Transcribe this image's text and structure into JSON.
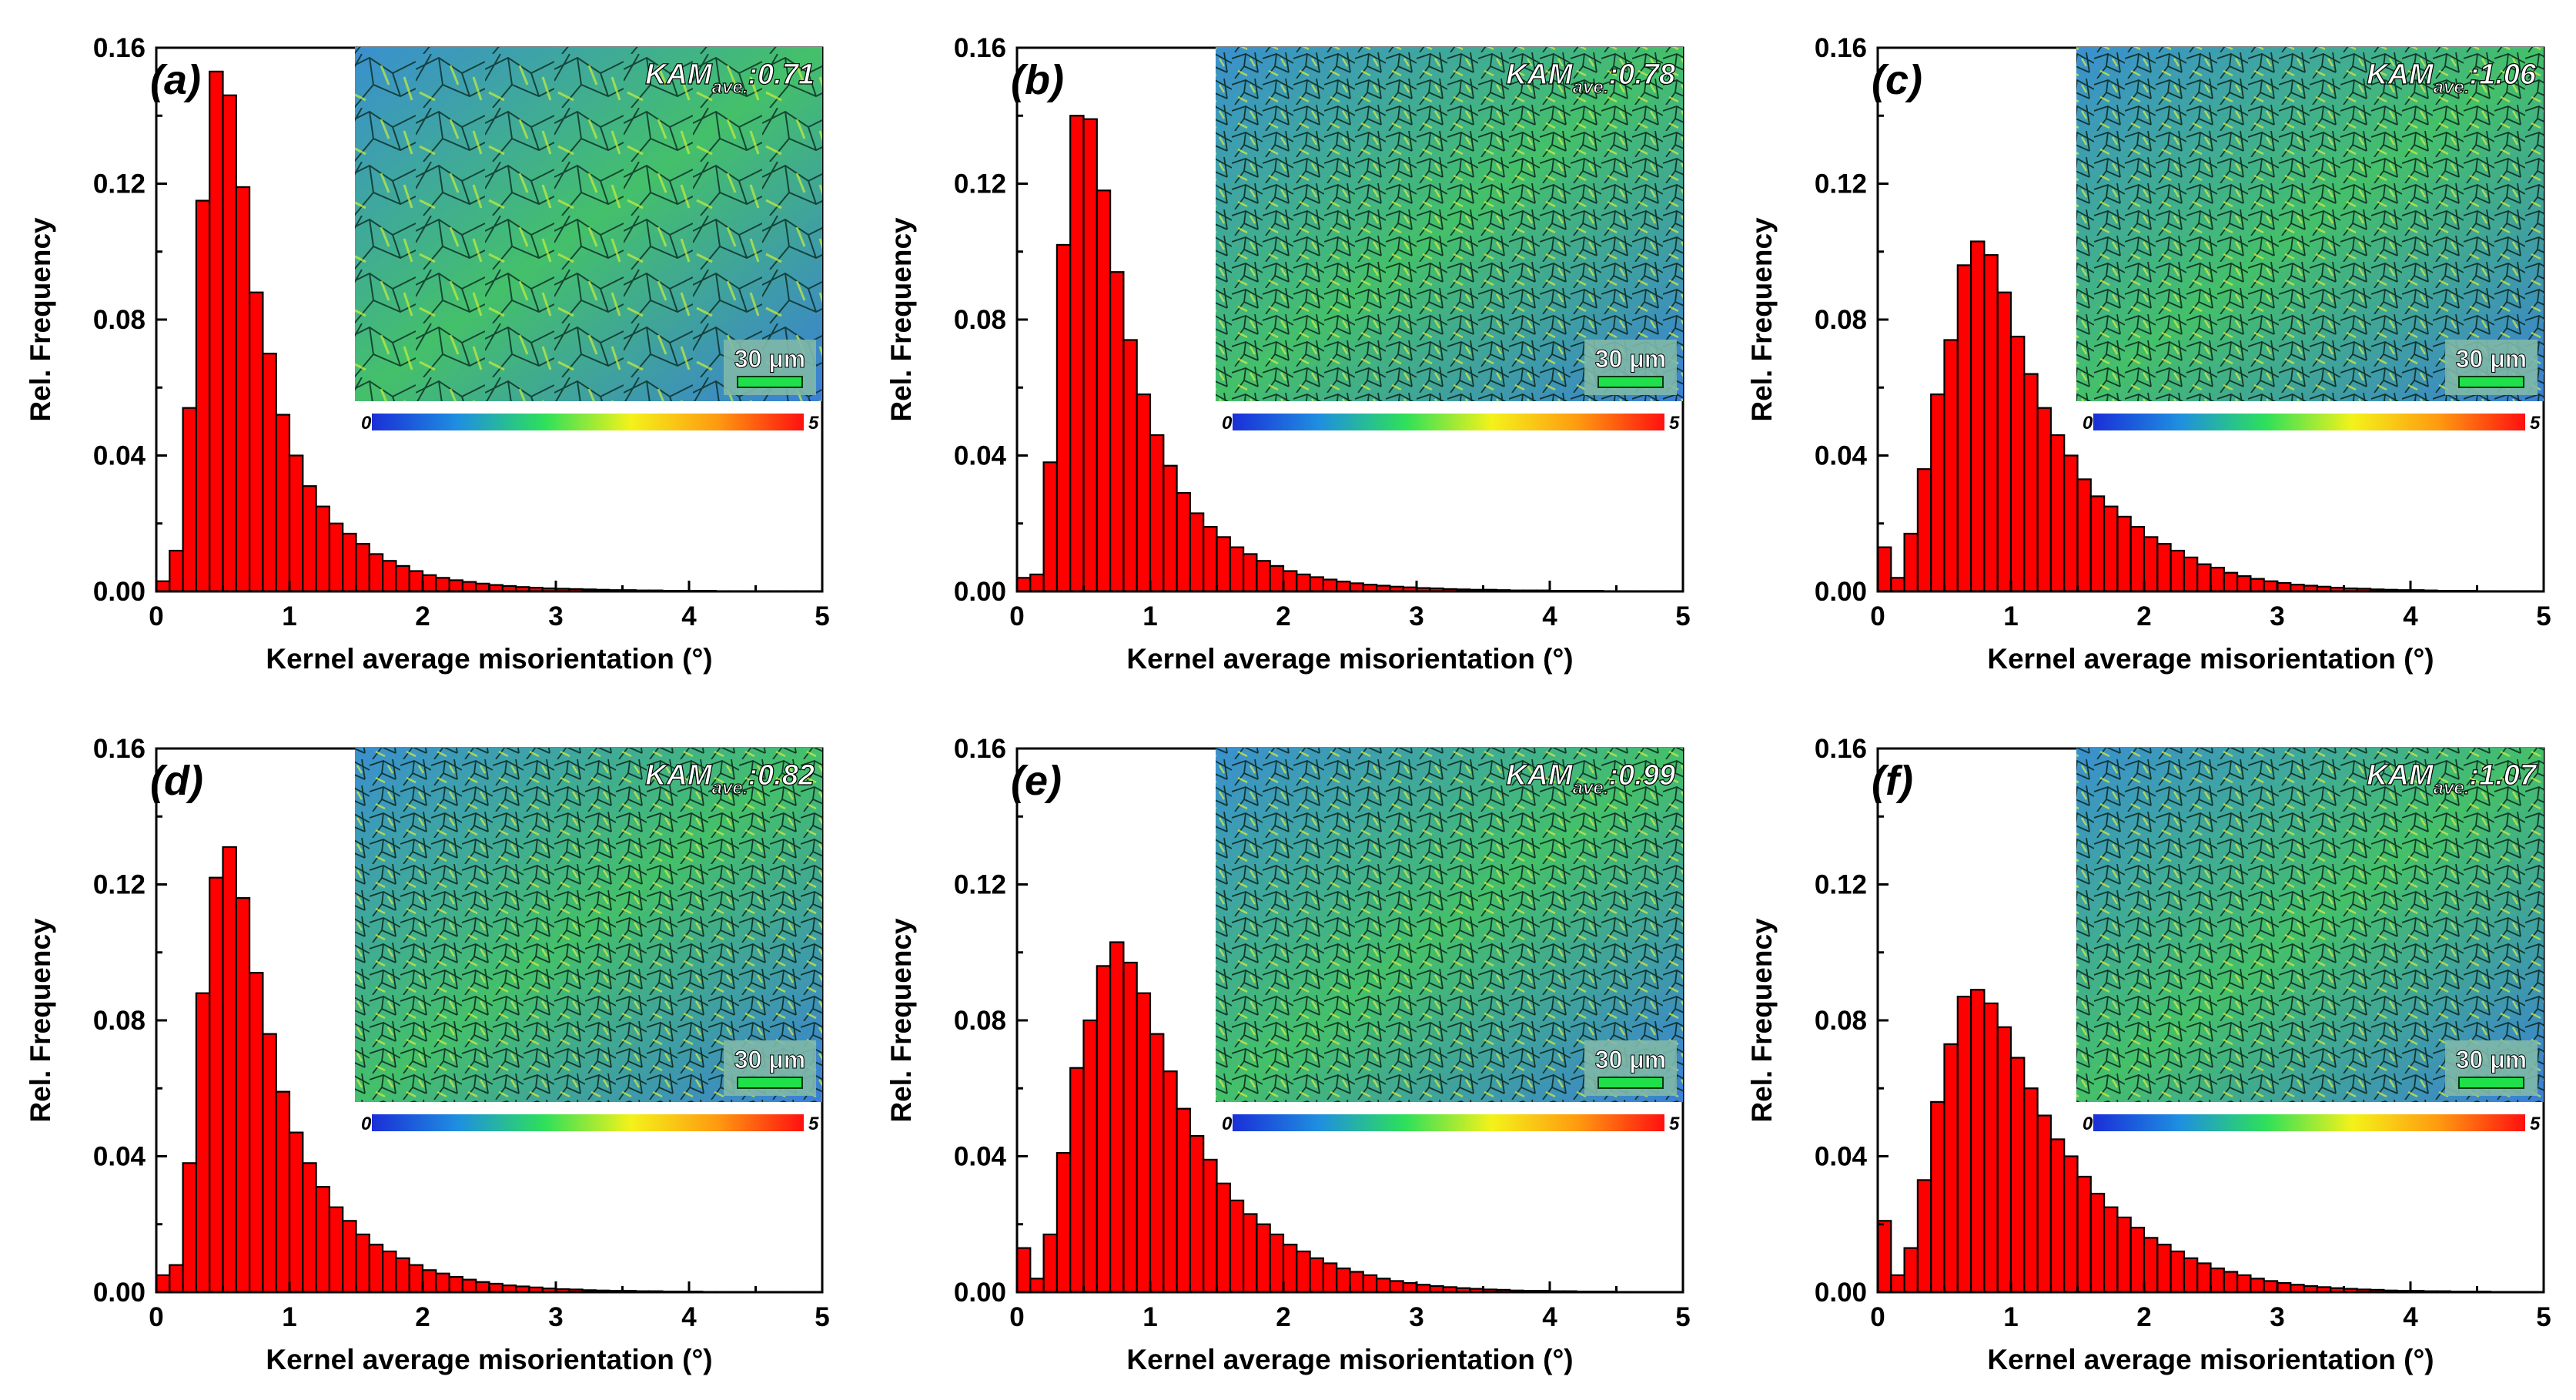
{
  "figure": {
    "colorbar_min": "0",
    "colorbar_max": "5",
    "colors": {
      "bar_fill": "#ff0000",
      "bar_stroke": "#000000",
      "axis": "#000000",
      "map_blue": "#2f5fd0",
      "map_green": "#3fcf4a",
      "scalebar_bg": "#7fb8a8",
      "scalebar_line": "#1fe04a"
    }
  },
  "chart_data": [
    {
      "type": "bar",
      "panel": "(a)",
      "kam_value": ":0.71",
      "kam_prefix": "KAM",
      "kam_sub": "ave.",
      "scale_label": "30 μm",
      "xlabel": "Kernel average misorientation (°)",
      "ylabel": "Rel. Frequency",
      "xlim": [
        0,
        5
      ],
      "ylim": [
        0,
        0.16
      ],
      "xticks": [
        "0",
        "1",
        "2",
        "3",
        "4",
        "5"
      ],
      "yticks": [
        "0.00",
        "0.04",
        "0.08",
        "0.12",
        "0.16"
      ],
      "bin_width": 0.1,
      "x": [
        0.05,
        0.15,
        0.25,
        0.35,
        0.45,
        0.55,
        0.65,
        0.75,
        0.85,
        0.95,
        1.05,
        1.15,
        1.25,
        1.35,
        1.45,
        1.55,
        1.65,
        1.75,
        1.85,
        1.95,
        2.05,
        2.15,
        2.25,
        2.35,
        2.45,
        2.55,
        2.65,
        2.75,
        2.85,
        2.95,
        3.05,
        3.15,
        3.25,
        3.35,
        3.45,
        3.55,
        3.65,
        3.75,
        3.85,
        3.95,
        4.05,
        4.15,
        4.25,
        4.35,
        4.45,
        4.55,
        4.65,
        4.75,
        4.85,
        4.95
      ],
      "values": [
        0.003,
        0.012,
        0.054,
        0.115,
        0.153,
        0.146,
        0.119,
        0.088,
        0.07,
        0.052,
        0.04,
        0.031,
        0.025,
        0.02,
        0.017,
        0.014,
        0.011,
        0.009,
        0.0075,
        0.006,
        0.0048,
        0.004,
        0.0033,
        0.0028,
        0.0023,
        0.0019,
        0.0016,
        0.0013,
        0.0011,
        0.0009,
        0.0008,
        0.0007,
        0.0006,
        0.0005,
        0.0004,
        0.0004,
        0.0003,
        0.0003,
        0.0002,
        0.0002,
        0.0002,
        0.0002,
        0.0001,
        0.0001,
        0.0001,
        0.0001,
        0.0001,
        0.0001,
        0.0001,
        0.0001
      ]
    },
    {
      "type": "bar",
      "panel": "(b)",
      "kam_value": ":0.78",
      "kam_prefix": "KAM",
      "kam_sub": "ave.",
      "scale_label": "30 μm",
      "xlabel": "Kernel average misorientation (°)",
      "ylabel": "Rel. Frequency",
      "xlim": [
        0,
        5
      ],
      "ylim": [
        0,
        0.16
      ],
      "xticks": [
        "0",
        "1",
        "2",
        "3",
        "4",
        "5"
      ],
      "yticks": [
        "0.00",
        "0.04",
        "0.08",
        "0.12",
        "0.16"
      ],
      "bin_width": 0.1,
      "x": [
        0.05,
        0.15,
        0.25,
        0.35,
        0.45,
        0.55,
        0.65,
        0.75,
        0.85,
        0.95,
        1.05,
        1.15,
        1.25,
        1.35,
        1.45,
        1.55,
        1.65,
        1.75,
        1.85,
        1.95,
        2.05,
        2.15,
        2.25,
        2.35,
        2.45,
        2.55,
        2.65,
        2.75,
        2.85,
        2.95,
        3.05,
        3.15,
        3.25,
        3.35,
        3.45,
        3.55,
        3.65,
        3.75,
        3.85,
        3.95,
        4.05,
        4.15,
        4.25,
        4.35,
        4.45,
        4.55,
        4.65,
        4.75,
        4.85,
        4.95
      ],
      "values": [
        0.004,
        0.005,
        0.038,
        0.102,
        0.14,
        0.139,
        0.118,
        0.094,
        0.074,
        0.058,
        0.046,
        0.037,
        0.029,
        0.023,
        0.019,
        0.016,
        0.013,
        0.011,
        0.009,
        0.0075,
        0.006,
        0.005,
        0.0042,
        0.0035,
        0.0029,
        0.0024,
        0.002,
        0.0017,
        0.0014,
        0.0012,
        0.001,
        0.0009,
        0.0007,
        0.0006,
        0.0005,
        0.0005,
        0.0004,
        0.0003,
        0.0003,
        0.0003,
        0.0002,
        0.0002,
        0.0002,
        0.0002,
        0.0001,
        0.0001,
        0.0001,
        0.0001,
        0.0001,
        0.0001
      ]
    },
    {
      "type": "bar",
      "panel": "(c)",
      "kam_value": ":1.06",
      "kam_prefix": "KAM",
      "kam_sub": "ave.",
      "scale_label": "30 μm",
      "xlabel": "Kernel average misorientation (°)",
      "ylabel": "Rel. Frequency",
      "xlim": [
        0,
        5
      ],
      "ylim": [
        0,
        0.16
      ],
      "xticks": [
        "0",
        "1",
        "2",
        "3",
        "4",
        "5"
      ],
      "yticks": [
        "0.00",
        "0.04",
        "0.08",
        "0.12",
        "0.16"
      ],
      "bin_width": 0.1,
      "x": [
        0.05,
        0.15,
        0.25,
        0.35,
        0.45,
        0.55,
        0.65,
        0.75,
        0.85,
        0.95,
        1.05,
        1.15,
        1.25,
        1.35,
        1.45,
        1.55,
        1.65,
        1.75,
        1.85,
        1.95,
        2.05,
        2.15,
        2.25,
        2.35,
        2.45,
        2.55,
        2.65,
        2.75,
        2.85,
        2.95,
        3.05,
        3.15,
        3.25,
        3.35,
        3.45,
        3.55,
        3.65,
        3.75,
        3.85,
        3.95,
        4.05,
        4.15,
        4.25,
        4.35,
        4.45,
        4.55,
        4.65,
        4.75,
        4.85,
        4.95
      ],
      "values": [
        0.013,
        0.004,
        0.017,
        0.036,
        0.058,
        0.074,
        0.096,
        0.103,
        0.099,
        0.088,
        0.075,
        0.064,
        0.054,
        0.046,
        0.04,
        0.033,
        0.028,
        0.025,
        0.022,
        0.019,
        0.016,
        0.014,
        0.012,
        0.01,
        0.008,
        0.007,
        0.0055,
        0.0045,
        0.0037,
        0.003,
        0.0025,
        0.002,
        0.0017,
        0.0014,
        0.0011,
        0.0009,
        0.0008,
        0.0006,
        0.0005,
        0.0004,
        0.0004,
        0.0003,
        0.0002,
        0.0002,
        0.0002,
        0.0001,
        0.0001,
        0.0001,
        0.0001,
        0.0001
      ]
    },
    {
      "type": "bar",
      "panel": "(d)",
      "kam_value": ":0.82",
      "kam_prefix": "KAM",
      "kam_sub": "ave.",
      "scale_label": "30 μm",
      "xlabel": "Kernel average misorientation (°)",
      "ylabel": "Rel. Frequency",
      "xlim": [
        0,
        5
      ],
      "ylim": [
        0,
        0.16
      ],
      "xticks": [
        "0",
        "1",
        "2",
        "3",
        "4",
        "5"
      ],
      "yticks": [
        "0.00",
        "0.04",
        "0.08",
        "0.12",
        "0.16"
      ],
      "bin_width": 0.1,
      "x": [
        0.05,
        0.15,
        0.25,
        0.35,
        0.45,
        0.55,
        0.65,
        0.75,
        0.85,
        0.95,
        1.05,
        1.15,
        1.25,
        1.35,
        1.45,
        1.55,
        1.65,
        1.75,
        1.85,
        1.95,
        2.05,
        2.15,
        2.25,
        2.35,
        2.45,
        2.55,
        2.65,
        2.75,
        2.85,
        2.95,
        3.05,
        3.15,
        3.25,
        3.35,
        3.45,
        3.55,
        3.65,
        3.75,
        3.85,
        3.95,
        4.05,
        4.15,
        4.25,
        4.35,
        4.45,
        4.55,
        4.65,
        4.75,
        4.85,
        4.95
      ],
      "values": [
        0.005,
        0.008,
        0.038,
        0.088,
        0.122,
        0.131,
        0.116,
        0.094,
        0.076,
        0.059,
        0.047,
        0.038,
        0.031,
        0.025,
        0.021,
        0.017,
        0.014,
        0.012,
        0.01,
        0.008,
        0.0065,
        0.0055,
        0.0045,
        0.0037,
        0.003,
        0.0025,
        0.002,
        0.0017,
        0.0014,
        0.0011,
        0.0009,
        0.0008,
        0.0006,
        0.0005,
        0.0004,
        0.0004,
        0.0003,
        0.0003,
        0.0002,
        0.0002,
        0.0002,
        0.0001,
        0.0001,
        0.0001,
        0.0001,
        0.0001,
        0.0001,
        0.0001,
        0.0001,
        0.0001
      ]
    },
    {
      "type": "bar",
      "panel": "(e)",
      "kam_value": ":0.99",
      "kam_prefix": "KAM",
      "kam_sub": "ave.",
      "scale_label": "30 μm",
      "xlabel": "Kernel average misorientation (°)",
      "ylabel": "Rel. Frequency",
      "xlim": [
        0,
        5
      ],
      "ylim": [
        0,
        0.16
      ],
      "xticks": [
        "0",
        "1",
        "2",
        "3",
        "4",
        "5"
      ],
      "yticks": [
        "0.00",
        "0.04",
        "0.08",
        "0.12",
        "0.16"
      ],
      "bin_width": 0.1,
      "x": [
        0.05,
        0.15,
        0.25,
        0.35,
        0.45,
        0.55,
        0.65,
        0.75,
        0.85,
        0.95,
        1.05,
        1.15,
        1.25,
        1.35,
        1.45,
        1.55,
        1.65,
        1.75,
        1.85,
        1.95,
        2.05,
        2.15,
        2.25,
        2.35,
        2.45,
        2.55,
        2.65,
        2.75,
        2.85,
        2.95,
        3.05,
        3.15,
        3.25,
        3.35,
        3.45,
        3.55,
        3.65,
        3.75,
        3.85,
        3.95,
        4.05,
        4.15,
        4.25,
        4.35,
        4.45,
        4.55,
        4.65,
        4.75,
        4.85,
        4.95
      ],
      "values": [
        0.013,
        0.004,
        0.017,
        0.041,
        0.066,
        0.08,
        0.096,
        0.103,
        0.097,
        0.088,
        0.076,
        0.065,
        0.054,
        0.046,
        0.039,
        0.032,
        0.027,
        0.023,
        0.02,
        0.017,
        0.014,
        0.012,
        0.01,
        0.0085,
        0.007,
        0.006,
        0.005,
        0.004,
        0.0033,
        0.0027,
        0.0022,
        0.0018,
        0.0015,
        0.0012,
        0.001,
        0.0008,
        0.0007,
        0.0005,
        0.0004,
        0.0004,
        0.0003,
        0.0003,
        0.0002,
        0.0002,
        0.0002,
        0.0001,
        0.0001,
        0.0001,
        0.0001,
        0.0001
      ]
    },
    {
      "type": "bar",
      "panel": "(f)",
      "kam_value": ":1.07",
      "kam_prefix": "KAM",
      "kam_sub": "ave.",
      "scale_label": "30 μm",
      "xlabel": "Kernel average misorientation (°)",
      "ylabel": "Rel. Frequency",
      "xlim": [
        0,
        5
      ],
      "ylim": [
        0,
        0.16
      ],
      "xticks": [
        "0",
        "1",
        "2",
        "3",
        "4",
        "5"
      ],
      "yticks": [
        "0.00",
        "0.04",
        "0.08",
        "0.12",
        "0.16"
      ],
      "bin_width": 0.1,
      "x": [
        0.05,
        0.15,
        0.25,
        0.35,
        0.45,
        0.55,
        0.65,
        0.75,
        0.85,
        0.95,
        1.05,
        1.15,
        1.25,
        1.35,
        1.45,
        1.55,
        1.65,
        1.75,
        1.85,
        1.95,
        2.05,
        2.15,
        2.25,
        2.35,
        2.45,
        2.55,
        2.65,
        2.75,
        2.85,
        2.95,
        3.05,
        3.15,
        3.25,
        3.35,
        3.45,
        3.55,
        3.65,
        3.75,
        3.85,
        3.95,
        4.05,
        4.15,
        4.25,
        4.35,
        4.45,
        4.55,
        4.65,
        4.75,
        4.85,
        4.95
      ],
      "values": [
        0.021,
        0.005,
        0.013,
        0.033,
        0.056,
        0.073,
        0.087,
        0.089,
        0.085,
        0.078,
        0.069,
        0.06,
        0.052,
        0.045,
        0.04,
        0.034,
        0.029,
        0.025,
        0.022,
        0.019,
        0.016,
        0.014,
        0.012,
        0.01,
        0.0085,
        0.007,
        0.006,
        0.005,
        0.004,
        0.0033,
        0.0027,
        0.0022,
        0.0018,
        0.0015,
        0.0012,
        0.001,
        0.0008,
        0.0007,
        0.0005,
        0.0004,
        0.0004,
        0.0003,
        0.0003,
        0.0002,
        0.0002,
        0.0002,
        0.0001,
        0.0001,
        0.0001,
        0.0001
      ]
    }
  ]
}
